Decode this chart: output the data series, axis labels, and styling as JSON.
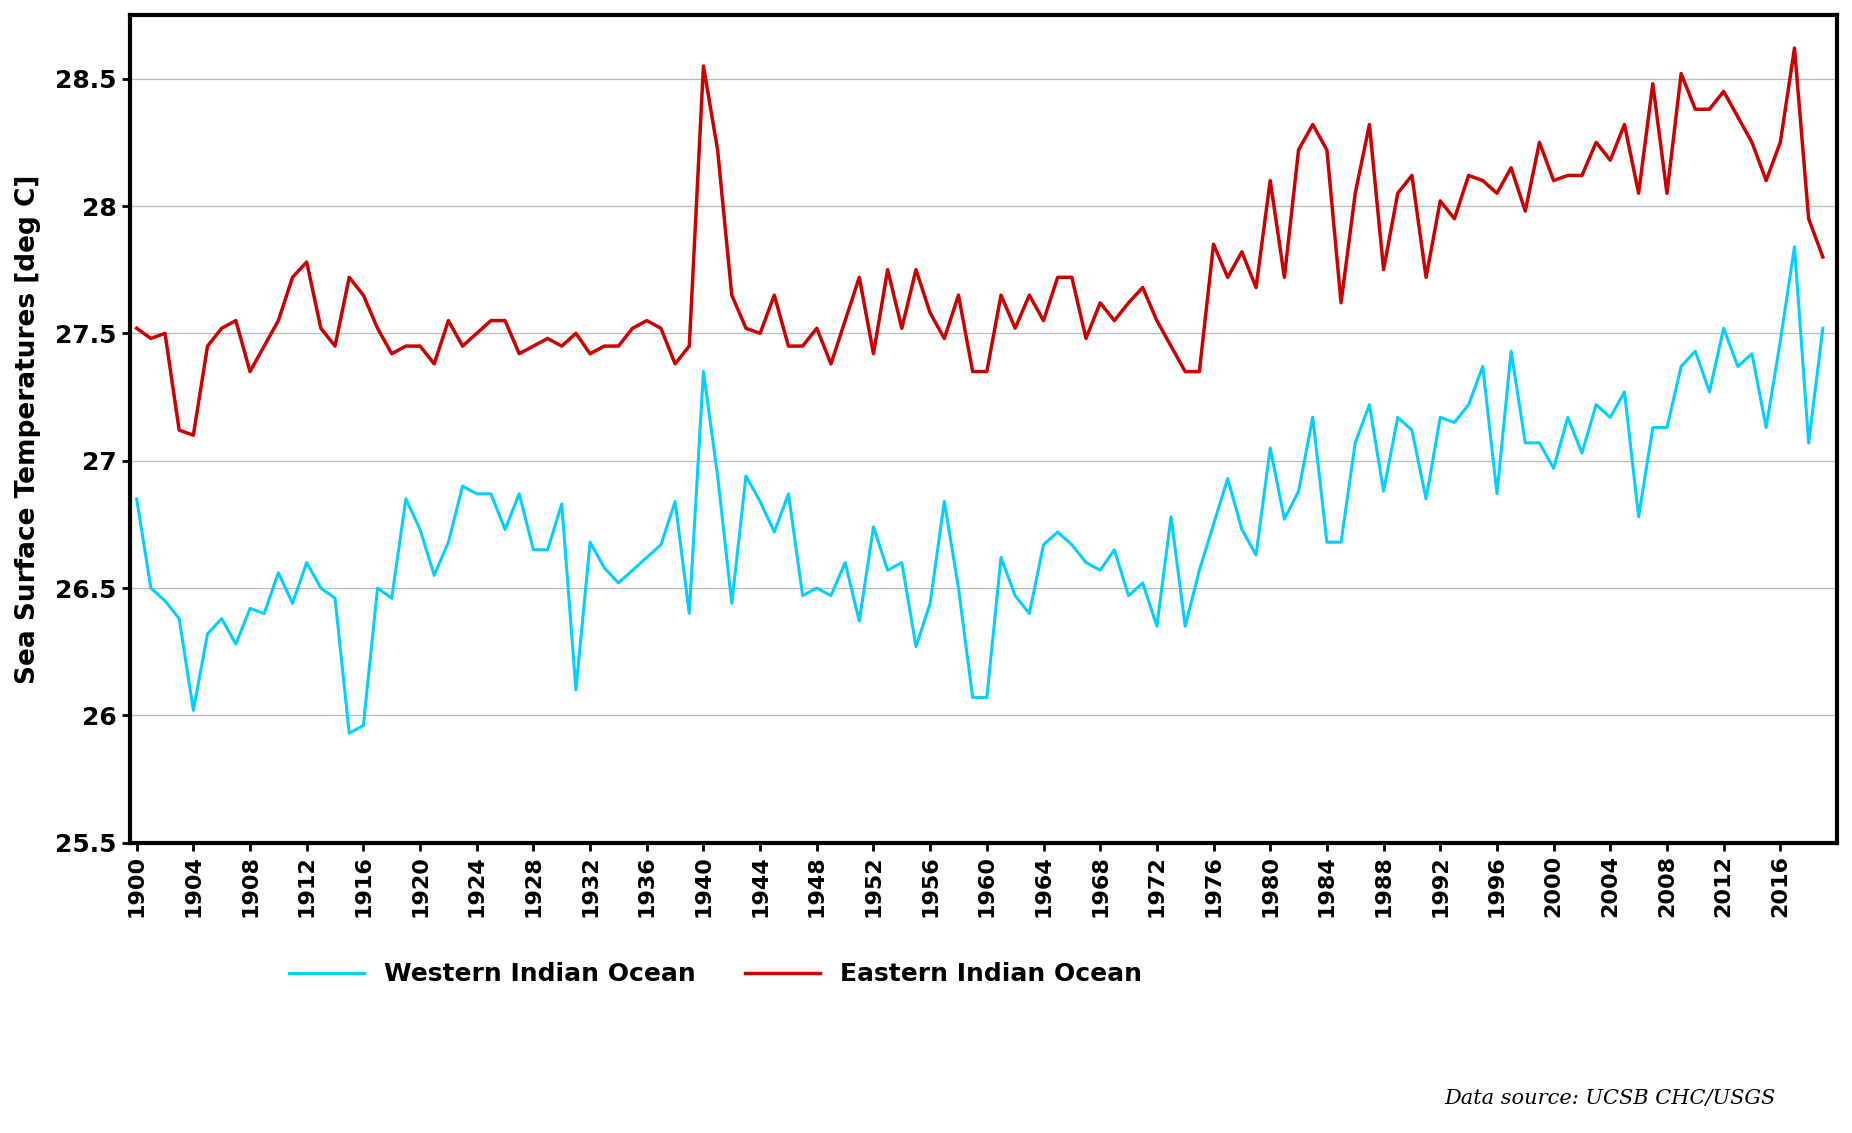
{
  "ylabel": "Sea Surface Temperatures [deg C]",
  "western_color": "#00CFFF",
  "eastern_color": "#CC0000",
  "background_color": "#FFFFFF",
  "ylim": [
    25.5,
    28.75
  ],
  "yticks": [
    25.5,
    26.0,
    26.5,
    27.0,
    27.5,
    28.0,
    28.5
  ],
  "legend_west": "Western Indian Ocean",
  "legend_east": "Eastern Indian Ocean",
  "source_text": "Data source: UCSB CHC/USGS",
  "years": [
    1900,
    1901,
    1902,
    1903,
    1904,
    1905,
    1906,
    1907,
    1908,
    1909,
    1910,
    1911,
    1912,
    1913,
    1914,
    1915,
    1916,
    1917,
    1918,
    1919,
    1920,
    1921,
    1922,
    1923,
    1924,
    1925,
    1926,
    1927,
    1928,
    1929,
    1930,
    1931,
    1932,
    1933,
    1934,
    1935,
    1936,
    1937,
    1938,
    1939,
    1940,
    1941,
    1942,
    1943,
    1944,
    1945,
    1946,
    1947,
    1948,
    1949,
    1950,
    1951,
    1952,
    1953,
    1954,
    1955,
    1956,
    1957,
    1958,
    1959,
    1960,
    1961,
    1962,
    1963,
    1964,
    1965,
    1966,
    1967,
    1968,
    1969,
    1970,
    1971,
    1972,
    1973,
    1974,
    1975,
    1976,
    1977,
    1978,
    1979,
    1980,
    1981,
    1982,
    1983,
    1984,
    1985,
    1986,
    1987,
    1988,
    1989,
    1990,
    1991,
    1992,
    1993,
    1994,
    1995,
    1996,
    1997,
    1998,
    1999,
    2000,
    2001,
    2002,
    2003,
    2004,
    2005,
    2006,
    2007,
    2008,
    2009,
    2010,
    2011,
    2012,
    2013,
    2014,
    2015,
    2016,
    2017,
    2018,
    2019
  ],
  "western": [
    26.85,
    26.5,
    26.45,
    26.38,
    26.02,
    26.32,
    26.38,
    26.28,
    26.42,
    26.4,
    26.56,
    26.44,
    26.6,
    26.5,
    26.46,
    25.93,
    25.96,
    26.5,
    26.46,
    26.85,
    26.73,
    26.55,
    26.68,
    26.9,
    26.87,
    26.87,
    26.73,
    26.87,
    26.65,
    26.65,
    26.83,
    26.1,
    26.68,
    26.58,
    26.52,
    26.57,
    26.62,
    26.67,
    26.84,
    26.4,
    27.35,
    26.94,
    26.44,
    26.94,
    26.84,
    26.72,
    26.87,
    26.47,
    26.5,
    26.47,
    26.6,
    26.37,
    26.74,
    26.57,
    26.6,
    26.27,
    26.44,
    26.84,
    26.5,
    26.07,
    26.07,
    26.62,
    26.47,
    26.4,
    26.67,
    26.72,
    26.67,
    26.6,
    26.57,
    26.65,
    26.47,
    26.52,
    26.35,
    26.78,
    26.35,
    26.57,
    26.75,
    26.93,
    26.73,
    26.63,
    27.05,
    26.77,
    26.88,
    27.17,
    26.68,
    26.68,
    27.07,
    27.22,
    26.88,
    27.17,
    27.12,
    26.85,
    27.17,
    27.15,
    27.22,
    27.37,
    26.87,
    27.43,
    27.07,
    27.07,
    26.97,
    27.17,
    27.03,
    27.22,
    27.17,
    27.27,
    26.78,
    27.13,
    27.13,
    27.37,
    27.43,
    27.27,
    27.52,
    27.37,
    27.42,
    27.13,
    27.47,
    27.84,
    27.07,
    27.52
  ],
  "eastern": [
    27.52,
    27.48,
    27.5,
    27.12,
    27.1,
    27.45,
    27.52,
    27.55,
    27.35,
    27.45,
    27.55,
    27.72,
    27.78,
    27.52,
    27.45,
    27.72,
    27.65,
    27.52,
    27.42,
    27.45,
    27.45,
    27.38,
    27.55,
    27.45,
    27.5,
    27.55,
    27.55,
    27.42,
    27.45,
    27.48,
    27.45,
    27.5,
    27.42,
    27.45,
    27.45,
    27.52,
    27.55,
    27.52,
    27.38,
    27.45,
    28.55,
    28.22,
    27.65,
    27.52,
    27.5,
    27.65,
    27.45,
    27.45,
    27.52,
    27.38,
    27.55,
    27.72,
    27.42,
    27.75,
    27.52,
    27.75,
    27.58,
    27.48,
    27.65,
    27.35,
    27.35,
    27.65,
    27.52,
    27.65,
    27.55,
    27.72,
    27.72,
    27.48,
    27.62,
    27.55,
    27.62,
    27.68,
    27.55,
    27.45,
    27.35,
    27.35,
    27.85,
    27.72,
    27.82,
    27.68,
    28.1,
    27.72,
    28.22,
    28.32,
    28.22,
    27.62,
    28.05,
    28.32,
    27.75,
    28.05,
    28.12,
    27.72,
    28.02,
    27.95,
    28.12,
    28.1,
    28.05,
    28.15,
    27.98,
    28.25,
    28.1,
    28.12,
    28.12,
    28.25,
    28.18,
    28.32,
    28.05,
    28.48,
    28.05,
    28.52,
    28.38,
    28.38,
    28.45,
    28.35,
    28.25,
    28.1,
    28.25,
    28.62,
    27.95,
    27.8
  ]
}
